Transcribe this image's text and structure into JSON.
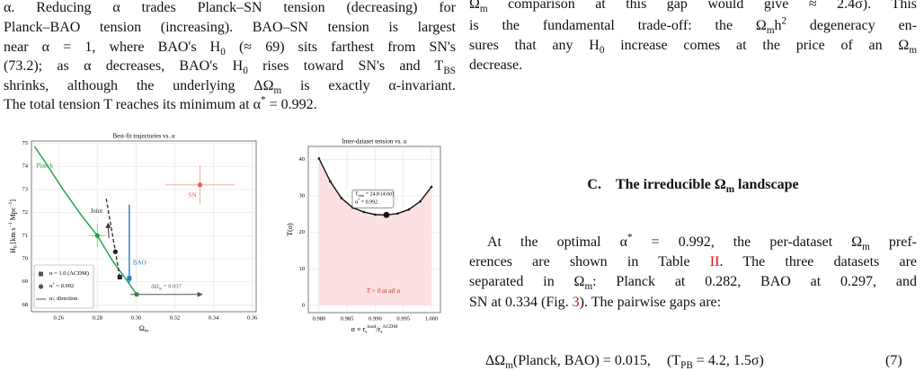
{
  "text": {
    "left": [
      [
        "α. Reducing α trades Planck–SN tension (decreasing) for"
      ],
      [
        "Planck–BAO tension (increasing). BAO–SN tension is largest"
      ],
      [
        "near α = 1, where BAO's H",
        {
          "sub": "0"
        },
        " (≈ 69) sits farthest from SN's"
      ],
      [
        "(73.2); as α decreases, BAO's H",
        {
          "sub": "0"
        },
        " rises toward SN's and T",
        {
          "sub": "BS"
        }
      ],
      [
        "shrinks, although the underlying ΔΩ",
        {
          "sub": "m"
        },
        " is exactly α-invariant."
      ],
      [
        "The total tension T reaches its minimum at α",
        {
          "sup": "*"
        },
        " = 0.992."
      ]
    ],
    "right_top": [
      [
        "Ω",
        {
          "sub": "m"
        },
        " comparison at this gap would give ≈ 2.4σ). This"
      ],
      [
        "is the fundamental trade-off: the Ω",
        {
          "sub": "m"
        },
        "h",
        {
          "sup": "2"
        },
        " degeneracy en-"
      ],
      [
        "sures that any H",
        {
          "sub": "0"
        },
        " increase comes at the price of an Ω",
        {
          "sub": "m"
        }
      ],
      [
        "decrease."
      ]
    ],
    "heading": {
      "number": "C.",
      "title": [
        "The irreducible Ω",
        {
          "sub": "m"
        },
        " landscape"
      ]
    },
    "right_para": [
      [
        "At the optimal α",
        {
          "sup": "*"
        },
        " = 0.992, the per-dataset Ω",
        {
          "sub": "m"
        },
        " pref-"
      ],
      [
        "erences are shown in Table ",
        {
          "ref": "II"
        },
        ". The three datasets are"
      ],
      [
        "separated in Ω",
        {
          "sub": "m"
        },
        ": Planck at 0.282, BAO at 0.297, and"
      ],
      [
        "SN at 0.334 (Fig. ",
        {
          "ref": "3"
        },
        "). The pairwise gaps are:"
      ]
    ],
    "equation": {
      "lhs": [
        "ΔΩ",
        {
          "sub": "m"
        },
        "(Planck, BAO) = 0.015,"
      ],
      "tension": [
        "(T",
        {
          "sub": "PB"
        },
        " = 4.2, 1.5σ)"
      ],
      "number": "(7)"
    }
  },
  "chart_data": [
    {
      "type": "line",
      "title": "Best-fit trajectories vs. α",
      "xlabel": [
        "Ω",
        {
          "sub": "m"
        }
      ],
      "ylabel": [
        "H",
        {
          "sub": "0"
        },
        " [km s",
        {
          "sup": "−1"
        },
        " Mpc",
        {
          "sup": "−1"
        },
        "]"
      ],
      "xlim": [
        0.246,
        0.362
      ],
      "ylim": [
        67.7,
        75.1
      ],
      "xticks": [
        0.26,
        0.28,
        {
          "value": 0.3,
          "label": "0.30"
        },
        0.32,
        0.34,
        0.36
      ],
      "yticks": [
        68,
        69,
        70,
        71,
        72,
        73,
        74,
        75
      ],
      "grid": true,
      "series": [
        {
          "name": "Planck",
          "color": "#1f9e4a",
          "x": [
            0.2475,
            0.253,
            0.2623,
            0.2716,
            0.28,
            0.2879,
            0.2949,
            0.3003
          ],
          "values": [
            74.87,
            74.2,
            73.0,
            71.9,
            71.0,
            69.9,
            69.1,
            68.45
          ]
        },
        {
          "name": "BAO",
          "color": "#2b78c2",
          "x": [
            0.2965,
            0.2965
          ],
          "values": [
            72.35,
            68.95
          ]
        },
        {
          "name": "Joint",
          "color": "#333333",
          "dashed": true,
          "x": [
            0.2846,
            0.2916
          ],
          "values": [
            72.6,
            69.2
          ]
        }
      ],
      "points": [
        {
          "x": 0.28,
          "y": 71.0,
          "xerr": 0.004,
          "yerr": 0.5,
          "color": "#1f9e4a",
          "marker": "circle"
        },
        {
          "x": 0.3003,
          "y": 68.45,
          "color": "#1f9e4a",
          "marker": "circle"
        },
        {
          "x": 0.2965,
          "y": 69.15,
          "color": "#2b78c2",
          "marker": "square"
        },
        {
          "x": 0.2893,
          "y": 70.3,
          "color": "#222222",
          "marker": "circle"
        },
        {
          "x": 0.2916,
          "y": 69.2,
          "color": "#222222",
          "marker": "square"
        },
        {
          "name": "SN",
          "x": 0.333,
          "y": 73.2,
          "xerr": 0.018,
          "yerr": 0.85,
          "color": "#e0604f",
          "marker": "circle"
        }
      ],
      "legend": [
        {
          "label": [
            "α = 1.0 (ΛCDM)"
          ],
          "marker": "square"
        },
        {
          "label": [
            "α",
            {
              "sup": "*"
            },
            " = 0.992"
          ],
          "marker": "circle"
        },
        {
          "label": [
            "α↓ direction"
          ],
          "marker": "line"
        }
      ],
      "arrow": {
        "from": 0.297,
        "to": 0.334,
        "y": 68.45,
        "label": [
          "ΔΩ",
          {
            "sub": "m"
          },
          " = 0.037"
        ]
      }
    },
    {
      "type": "line",
      "title": "Inter-dataset tension vs. α",
      "xlabel": [
        "α ≡ r",
        {
          "sub": "s"
        },
        {
          "sup": "mod"
        },
        "/r",
        {
          "sub": "s"
        },
        {
          "sup": "ΛCDM"
        }
      ],
      "ylabel": [
        "T(α)"
      ],
      "xlim": [
        0.9781,
        1.0016
      ],
      "ylim": [
        -2,
        43.6
      ],
      "xticks": [
        {
          "value": 0.98,
          "label": "0.980"
        },
        0.985,
        {
          "value": 0.99,
          "label": "0.990"
        },
        0.995,
        {
          "value": 1.0,
          "label": "1.000"
        }
      ],
      "yticks": [
        0,
        10,
        20,
        30,
        40
      ],
      "grid": true,
      "color": "#111111",
      "fill": "#fbe1e1",
      "x": [
        0.98,
        0.982,
        0.984,
        0.986,
        0.988,
        0.99,
        0.992,
        0.994,
        0.996,
        0.998,
        1.0
      ],
      "values": [
        40.3,
        34.0,
        29.4,
        26.8,
        25.6,
        24.9,
        24.8,
        25.2,
        26.3,
        28.5,
        32.5
      ],
      "minimum": {
        "x": 0.992,
        "y": 24.8
      },
      "annotation": [
        [
          "T",
          {
            "sub": "min"
          },
          " = 24.8 (4.0σ)"
        ],
        [
          "α",
          {
            "sup": "*"
          },
          " = 0.992"
        ]
      ],
      "note": [
        "T > 0 at all α"
      ],
      "note_color": "#d62728"
    }
  ]
}
